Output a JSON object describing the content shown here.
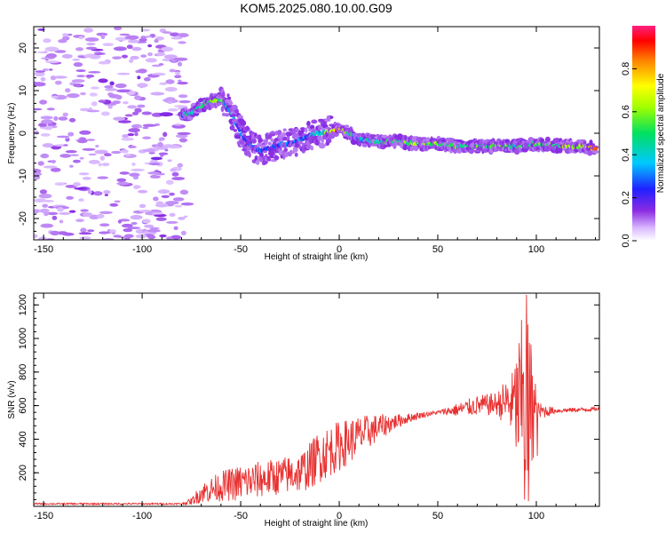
{
  "figure": {
    "title": "KOM5.2025.080.10.00.G09"
  },
  "colors": {
    "snr_line": "#e83030",
    "frame": "#000000",
    "background": "#ffffff"
  },
  "chart_data": [
    {
      "type": "heatmap",
      "name": "spectrogram",
      "xlabel": "Height of straight line (km)",
      "ylabel": "Frequency (Hz)",
      "xlim": [
        -155,
        132
      ],
      "ylim": [
        -25,
        25
      ],
      "x_ticks": [
        -150,
        -100,
        -50,
        0,
        50,
        100
      ],
      "y_ticks": [
        -20,
        -10,
        0,
        10,
        20
      ],
      "colorbar": {
        "label": "Normalized spectral amplitude",
        "range": [
          0,
          1
        ],
        "ticks": [
          0.0,
          0.2,
          0.4,
          0.6,
          0.8
        ],
        "colormap": "rainbow (white-violet-blue-cyan-green-yellow-red-magenta)"
      },
      "ridge": {
        "x": [
          -80,
          -75,
          -70,
          -65,
          -60,
          -55,
          -50,
          -45,
          -40,
          -35,
          -30,
          -25,
          -20,
          -15,
          -10,
          -5,
          0,
          5,
          10,
          20,
          30,
          40,
          50,
          60,
          70,
          80,
          90,
          100,
          110,
          120,
          130
        ],
        "freq": [
          4,
          5,
          6.5,
          7.5,
          8,
          5,
          0,
          -3,
          -4,
          -3.5,
          -2.5,
          -2.5,
          -1.5,
          -0.5,
          0,
          0.5,
          1,
          0,
          -1.5,
          -2,
          -2,
          -2.5,
          -2.5,
          -3,
          -3,
          -3,
          -3,
          -2.5,
          -3,
          -3,
          -3.5
        ],
        "amplitude": [
          0.3,
          0.45,
          0.5,
          0.55,
          0.5,
          0.3,
          0.25,
          0.2,
          0.22,
          0.2,
          0.22,
          0.22,
          0.28,
          0.3,
          0.4,
          0.6,
          0.9,
          0.45,
          0.35,
          0.5,
          0.55,
          0.6,
          0.55,
          0.55,
          0.5,
          0.55,
          0.45,
          0.5,
          0.55,
          0.65,
          0.75
        ]
      },
      "noise_region_x": [
        -155,
        -80
      ]
    },
    {
      "type": "line",
      "name": "snr",
      "xlabel": "Height of straight line (km)",
      "ylabel": "SNR (v/v)",
      "xlim": [
        -155,
        132
      ],
      "ylim": [
        0,
        1270
      ],
      "x_ticks": [
        -150,
        -100,
        -50,
        0,
        50,
        100
      ],
      "y_ticks": [
        200,
        400,
        600,
        800,
        1000,
        1200
      ],
      "envelope": {
        "x": [
          -155,
          -120,
          -80,
          -75,
          -70,
          -60,
          -50,
          -40,
          -30,
          -20,
          -15,
          -10,
          -5,
          0,
          10,
          20,
          30,
          40,
          50,
          60,
          70,
          80,
          85,
          90,
          93,
          95,
          97,
          100,
          110,
          120,
          132
        ],
        "y": [
          15,
          15,
          15,
          30,
          80,
          120,
          140,
          160,
          180,
          200,
          240,
          300,
          330,
          360,
          420,
          470,
          510,
          540,
          560,
          575,
          600,
          610,
          620,
          600,
          600,
          580,
          560,
          565,
          570,
          575,
          580
        ]
      },
      "noise_amplitude": {
        "x": [
          -155,
          -80,
          -75,
          -70,
          -60,
          -50,
          -40,
          -30,
          -20,
          -10,
          0,
          10,
          20,
          30,
          40,
          50,
          60,
          70,
          80,
          88,
          92,
          95,
          97,
          100,
          110,
          132
        ],
        "y": [
          5,
          5,
          20,
          60,
          90,
          110,
          110,
          110,
          120,
          160,
          150,
          120,
          80,
          40,
          20,
          10,
          40,
          60,
          70,
          200,
          500,
          600,
          500,
          60,
          15,
          12
        ]
      },
      "features": [
        {
          "x": 95,
          "y": 1260
        },
        {
          "x": 93.5,
          "y": 800
        },
        {
          "x": 96,
          "y": 30
        },
        {
          "x": 94,
          "y": 40
        },
        {
          "x": 98,
          "y": 780
        },
        {
          "x": 99.5,
          "y": 730
        },
        {
          "x": 100.5,
          "y": 300
        }
      ]
    }
  ]
}
